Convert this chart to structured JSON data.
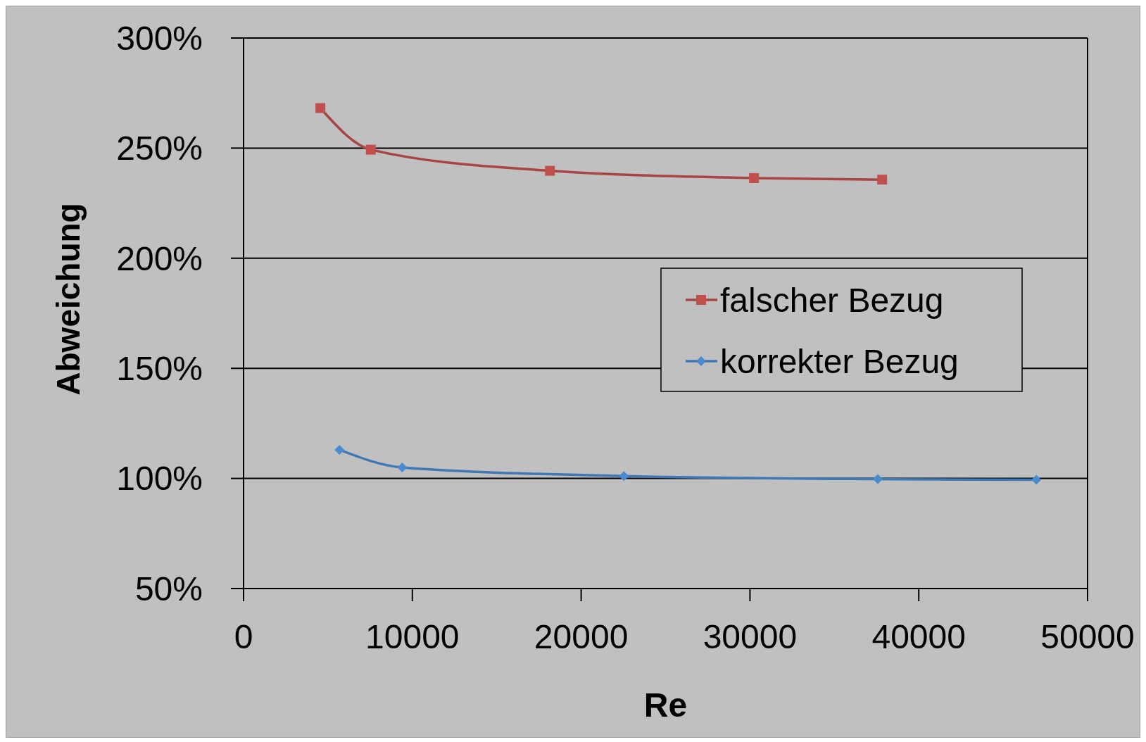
{
  "chart_data": {
    "type": "line",
    "xlabel": "Re",
    "ylabel": "Abweichung",
    "xlim": [
      0,
      50000
    ],
    "xticks": [
      0,
      10000,
      20000,
      30000,
      40000,
      50000
    ],
    "ylim": [
      50,
      300
    ],
    "yticks": [
      {
        "value": 50,
        "label": "50%"
      },
      {
        "value": 100,
        "label": "100%"
      },
      {
        "value": 150,
        "label": "150%"
      },
      {
        "value": 200,
        "label": "200%"
      },
      {
        "value": 250,
        "label": "250%"
      },
      {
        "value": 300,
        "label": "300%"
      }
    ],
    "grid": "y",
    "legend": "right",
    "series": [
      {
        "name": "falscher Bezug",
        "color": "#c0504d",
        "marker": "square",
        "x": [
          4550,
          7540,
          18150,
          30240,
          37830
        ],
        "values": [
          268.2,
          249.3,
          239.7,
          236.4,
          235.7
        ]
      },
      {
        "name": "korrekter Bezug",
        "color": "#4a8ad0",
        "marker": "diamond",
        "x": [
          5680,
          9400,
          22530,
          37570,
          46970
        ],
        "values": [
          113.0,
          105.0,
          101.1,
          99.7,
          99.4
        ]
      }
    ]
  }
}
